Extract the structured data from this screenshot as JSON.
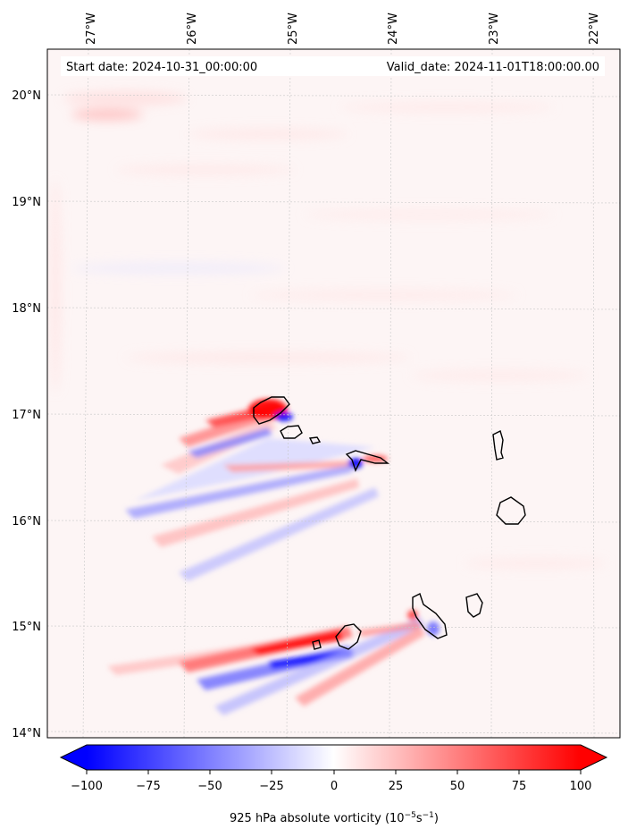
{
  "header": {
    "start_label": "Start date: 2024-10-31_00:00:00",
    "valid_label": "Valid_date: 2024-11-01T18:00:00.00"
  },
  "map": {
    "lon_labels": [
      "27°W",
      "26°W",
      "25°W",
      "24°W",
      "23°W",
      "22°W"
    ],
    "lat_labels": [
      "20°N",
      "19°N",
      "18°N",
      "17°N",
      "16°N",
      "15°N",
      "14°N"
    ],
    "gridlines": true
  },
  "colorbar": {
    "ticks": [
      "−100",
      "−75",
      "−50",
      "−25",
      "0",
      "25",
      "50",
      "75",
      "100"
    ],
    "label_main": "925 hPa absolute vorticity (10",
    "label_exp1": "−5",
    "label_mid": "s",
    "label_exp2": "−1",
    "label_end": ")",
    "colormap": "bwr",
    "range": [
      -100,
      100
    ],
    "extend": "both"
  },
  "colors": {
    "negative": "#0000ff",
    "positive": "#ff0000",
    "background": "#fdf5f5"
  }
}
